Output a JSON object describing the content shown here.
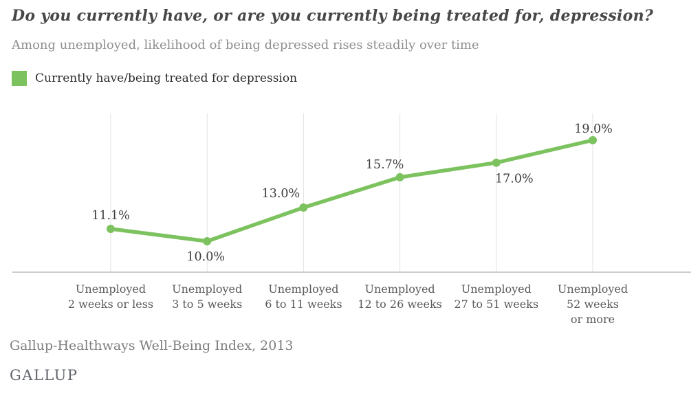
{
  "header": {
    "title": "Do you currently have, or are you currently being treated for, depression?",
    "subtitle": "Among unemployed, likelihood of being depressed rises steadily over time"
  },
  "legend": {
    "label": "Currently have/being treated for depression",
    "color": "#7cc25e"
  },
  "chart_data": {
    "type": "line",
    "title": "Do you currently have, or are you currently being treated for, depression?",
    "subtitle": "Among unemployed, likelihood of being depressed rises steadily over time",
    "categories": [
      [
        "Unemployed",
        "2 weeks or less"
      ],
      [
        "Unemployed",
        "3 to 5 weeks"
      ],
      [
        "Unemployed",
        "6 to 11 weeks"
      ],
      [
        "Unemployed",
        "12 to 26 weeks"
      ],
      [
        "Unemployed",
        "27 to 51 weeks"
      ],
      [
        "Unemployed",
        "52 weeks",
        "or more"
      ]
    ],
    "series": [
      {
        "name": "Currently have/being treated for depression",
        "color": "#7cc25e",
        "values": [
          11.1,
          10.0,
          13.0,
          15.7,
          17.0,
          19.0
        ],
        "point_labels": [
          "11.1%",
          "10.0%",
          "13.0%",
          "15.7%",
          "17.0%",
          "19.0%"
        ]
      }
    ],
    "ylim": [
      7.2,
      21.4
    ],
    "grid": "vertical-only",
    "legend_position": "top-left",
    "gridline_color": "#e2e2e2",
    "axis_color": "#cdcdcd",
    "point_label_color": "#3d3d3d"
  },
  "footer": {
    "source": "Gallup-Healthways Well-Being Index, 2013",
    "brand": "GALLUP",
    "brand_mark": "′"
  }
}
